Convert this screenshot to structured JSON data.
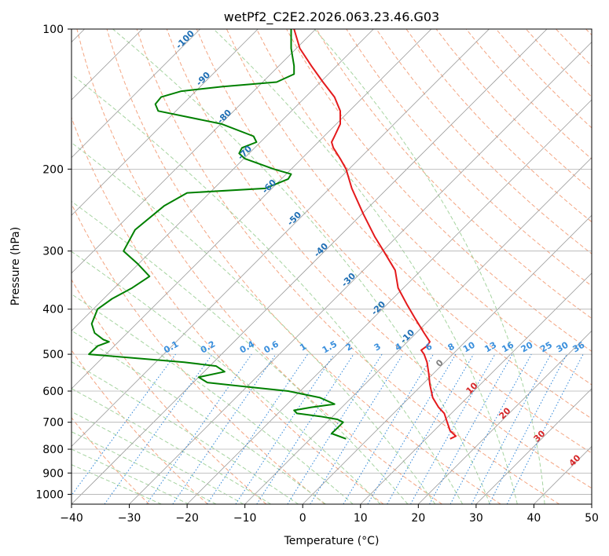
{
  "chart_data": {
    "type": "line",
    "title": "wetPf2_C2E2.2026.063.23.46.G03",
    "xlabel": "Temperature (°C)",
    "ylabel": "Pressure (hPa)",
    "xlim": [
      -40,
      50
    ],
    "ylim": [
      1050,
      100
    ],
    "y_scale": "log",
    "x_ticks": [
      "−40",
      "−30",
      "−20",
      "−10",
      "0",
      "10",
      "20",
      "30",
      "40",
      "50"
    ],
    "x_tick_values": [
      -40,
      -30,
      -20,
      -10,
      0,
      10,
      20,
      30,
      40,
      50
    ],
    "y_ticks": [
      "100",
      "200",
      "300",
      "400",
      "500",
      "600",
      "700",
      "800",
      "900",
      "1000"
    ],
    "y_tick_values": [
      100,
      200,
      300,
      400,
      500,
      600,
      700,
      800,
      900,
      1000
    ],
    "grid": true,
    "series": [
      {
        "color": "#e41a1c",
        "p": [
          100,
          110,
          120,
          130,
          140,
          150,
          160,
          170,
          175,
          180,
          190,
          200,
          220,
          250,
          280,
          300,
          330,
          360,
          390,
          420,
          450,
          470,
          480,
          490,
          500,
          520,
          550,
          580,
          620,
          650,
          670,
          700,
          730,
          750,
          760
        ],
        "t_axis": [
          -1.5,
          -0.5,
          1.5,
          3.5,
          5.5,
          6.5,
          6.5,
          5.5,
          5.0,
          5.3,
          6.5,
          7.5,
          8.5,
          10.5,
          12.5,
          14.0,
          16.0,
          16.5,
          18.0,
          19.5,
          21.0,
          22.0,
          21.5,
          20.5,
          21.0,
          21.5,
          21.8,
          22.0,
          22.5,
          23.5,
          24.5,
          25.0,
          25.5,
          26.5,
          25.5
        ]
      },
      {
        "color": "#008000",
        "p": [
          100,
          110,
          120,
          125,
          130,
          133,
          136,
          140,
          145,
          150,
          160,
          170,
          175,
          180,
          185,
          190,
          200,
          205,
          210,
          220,
          225,
          240,
          270,
          300,
          320,
          340,
          360,
          380,
          400,
          430,
          450,
          465,
          470,
          480,
          500,
          520,
          530,
          545,
          560,
          575,
          585,
          600,
          620,
          640,
          650,
          660,
          670,
          680,
          690,
          700,
          720,
          740,
          760
        ],
        "t_axis": [
          -2.0,
          -2.0,
          -1.5,
          -1.5,
          -4.5,
          -14.0,
          -21.0,
          -24.5,
          -25.5,
          -25.0,
          -14.0,
          -8.5,
          -8.0,
          -10.5,
          -11.0,
          -10.0,
          -5.0,
          -2.0,
          -2.5,
          -6.5,
          -20.0,
          -24.0,
          -29.0,
          -31.0,
          -28.5,
          -26.5,
          -29.5,
          -33.0,
          -35.5,
          -36.5,
          -36.0,
          -34.5,
          -33.5,
          -35.5,
          -37.0,
          -20.5,
          -15.0,
          -13.5,
          -18.0,
          -16.5,
          -11.0,
          -2.5,
          3.0,
          5.5,
          1.5,
          -1.5,
          -1.0,
          3.0,
          6.0,
          7.0,
          6.0,
          5.0,
          7.5
        ]
      }
    ],
    "isotherm_labels": [
      "-100",
      "-90",
      "-80",
      "-70",
      "-60",
      "-50",
      "-40",
      "-30",
      "-20",
      "-10",
      "0",
      "10",
      "20",
      "30",
      "40"
    ],
    "isotherm_label_colors": [
      "#1f6fb4",
      "#1f6fb4",
      "#1f6fb4",
      "#1f6fb4",
      "#1f6fb4",
      "#1f6fb4",
      "#1f6fb4",
      "#1f6fb4",
      "#1f6fb4",
      "#1f6fb4",
      "#808080",
      "#d62728",
      "#d62728",
      "#d62728",
      "#d62728"
    ],
    "mixing_ratio_labels": [
      "0.1",
      "0.2",
      "0.4",
      "0.6",
      "1",
      "1.5",
      "2",
      "3",
      "4",
      "6",
      "8",
      "10",
      "13",
      "16",
      "20",
      "25",
      "30",
      "36"
    ],
    "mixing_ratio_color": "#3a8fdc",
    "colors": {
      "grid": "#b0b0b0",
      "isotherm": "#9a9a9a",
      "dry_adiabat": "#f4a582",
      "moist_adiabat": "#a6d4a0",
      "mixing_ratio": "#2f86d8",
      "temperature": "#e41a1c",
      "dewpoint": "#008000"
    }
  }
}
